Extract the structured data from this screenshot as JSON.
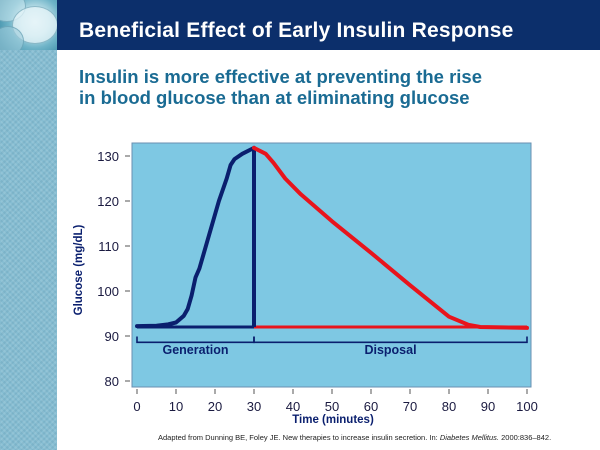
{
  "slide": {
    "title": "Beneficial Effect of Early Insulin Response",
    "subtitle_line1": "Insulin is more effective at preventing the rise",
    "subtitle_line2": "in blood glucose than at eliminating glucose",
    "citation": {
      "prefix": "Adapted from Dunning BE, Foley JE. New therapies to increase insulin secretion. In: ",
      "journal": "Diabetes Mellitus.",
      "suffix": " 2000:836–842."
    }
  },
  "colors": {
    "header_bg": "#0c2f6b",
    "subtitle": "#1a6b93",
    "plot_bg": "#7ec8e3",
    "generation": "#0a1f6e",
    "disposal": "#e8141c",
    "axis_text": "#1a1a40"
  },
  "chart_data": {
    "type": "line",
    "title": "",
    "xlabel": "Time (minutes)",
    "ylabel": "Glucose (mg/dL)",
    "xlim": [
      0,
      100
    ],
    "ylim": [
      80,
      130
    ],
    "x_ticks": [
      0,
      10,
      20,
      30,
      40,
      50,
      60,
      70,
      80,
      90,
      100
    ],
    "y_ticks": [
      80,
      90,
      100,
      110,
      120,
      130
    ],
    "grid": false,
    "series": [
      {
        "name": "Generation",
        "color": "#0a1f6e",
        "points": [
          [
            0,
            92.2
          ],
          [
            5,
            92.3
          ],
          [
            8,
            92.6
          ],
          [
            10,
            93
          ],
          [
            12,
            94.5
          ],
          [
            13,
            96
          ],
          [
            14,
            99
          ],
          [
            15,
            103
          ],
          [
            16,
            105
          ],
          [
            18,
            111
          ],
          [
            20,
            117
          ],
          [
            21,
            120
          ],
          [
            23,
            125
          ],
          [
            24,
            128
          ],
          [
            25,
            129.3
          ],
          [
            27,
            130.5
          ],
          [
            30,
            131.8
          ]
        ]
      },
      {
        "name": "Disposal",
        "color": "#e8141c",
        "points": [
          [
            30,
            131.8
          ],
          [
            33,
            130.5
          ],
          [
            35,
            128.5
          ],
          [
            38,
            125
          ],
          [
            42,
            121.5
          ],
          [
            50,
            115.5
          ],
          [
            60,
            108.5
          ],
          [
            70,
            101.3
          ],
          [
            80,
            94.3
          ],
          [
            85,
            92.5
          ],
          [
            88,
            92
          ],
          [
            100,
            91.8
          ]
        ]
      }
    ],
    "reference_lines": [
      {
        "name": "baseline-generation",
        "x": [
          0,
          30
        ],
        "y": 92,
        "color": "#0a1f6e"
      },
      {
        "name": "baseline-disposal",
        "x": [
          30,
          100
        ],
        "y": 92,
        "color": "#e8141c"
      },
      {
        "name": "peak-vertical",
        "x": 30,
        "y": [
          92,
          131.8
        ],
        "color": "#0a1f6e"
      }
    ],
    "annotations": [
      {
        "label": "Generation",
        "span": [
          0,
          30
        ]
      },
      {
        "label": "Disposal",
        "span": [
          30,
          100
        ]
      }
    ]
  }
}
